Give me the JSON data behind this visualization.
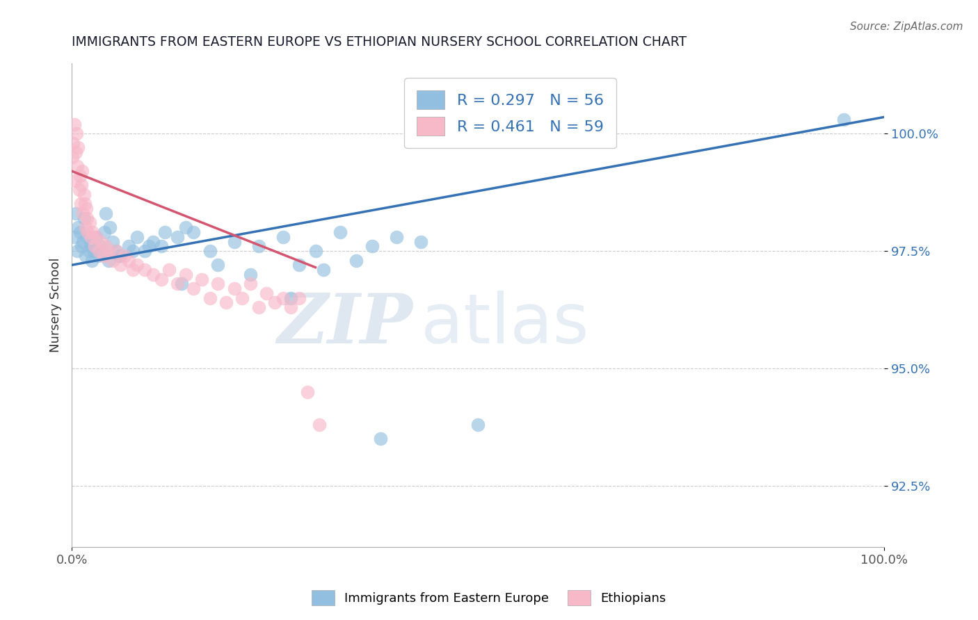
{
  "title": "IMMIGRANTS FROM EASTERN EUROPE VS ETHIOPIAN NURSERY SCHOOL CORRELATION CHART",
  "source": "Source: ZipAtlas.com",
  "xlabel": "",
  "ylabel": "Nursery School",
  "xlim": [
    0.0,
    100.0
  ],
  "ylim": [
    91.2,
    101.5
  ],
  "yticks": [
    92.5,
    95.0,
    97.5,
    100.0
  ],
  "ytick_labels": [
    "92.5%",
    "95.0%",
    "97.5%",
    "100.0%"
  ],
  "blue_label": "Immigrants from Eastern Europe",
  "pink_label": "Ethiopians",
  "blue_R": 0.297,
  "blue_N": 56,
  "pink_R": 0.461,
  "pink_N": 59,
  "blue_color": "#92bfe0",
  "pink_color": "#f7b8c8",
  "blue_line_color": "#3572b5",
  "pink_line_color": "#d45570",
  "watermark_zip": "ZIP",
  "watermark_atlas": "atlas",
  "blue_line_x0": 0.0,
  "blue_line_y0": 97.2,
  "blue_line_x1": 100.0,
  "blue_line_y1": 100.35,
  "pink_line_x0": 0.0,
  "pink_line_y0": 99.2,
  "pink_line_x1": 30.0,
  "pink_line_y1": 97.15,
  "blue_x": [
    0.3,
    0.5,
    0.7,
    0.8,
    1.0,
    1.2,
    1.4,
    1.5,
    1.7,
    1.9,
    2.1,
    2.3,
    2.5,
    2.7,
    3.0,
    3.2,
    3.5,
    3.8,
    4.0,
    4.5,
    5.0,
    5.5,
    6.0,
    7.0,
    8.0,
    9.0,
    10.0,
    11.0,
    13.0,
    15.0,
    17.0,
    20.0,
    23.0,
    26.0,
    30.0,
    33.0,
    37.0,
    40.0,
    43.0,
    13.5,
    18.0,
    22.0,
    27.0,
    31.0,
    35.0,
    4.2,
    4.7,
    5.8,
    7.5,
    9.5,
    11.5,
    14.0,
    28.0,
    38.0,
    50.0,
    95.0
  ],
  "blue_y": [
    97.8,
    98.3,
    97.5,
    98.0,
    97.9,
    97.6,
    97.7,
    98.2,
    97.4,
    97.8,
    97.5,
    97.6,
    97.3,
    97.5,
    97.8,
    97.4,
    97.6,
    97.5,
    97.9,
    97.3,
    97.7,
    97.5,
    97.4,
    97.6,
    97.8,
    97.5,
    97.7,
    97.6,
    97.8,
    97.9,
    97.5,
    97.7,
    97.6,
    97.8,
    97.5,
    97.9,
    97.6,
    97.8,
    97.7,
    96.8,
    97.2,
    97.0,
    96.5,
    97.1,
    97.3,
    98.3,
    98.0,
    97.4,
    97.5,
    97.6,
    97.9,
    98.0,
    97.2,
    93.5,
    93.8,
    100.3
  ],
  "pink_x": [
    0.1,
    0.2,
    0.3,
    0.4,
    0.5,
    0.6,
    0.7,
    0.8,
    0.9,
    1.0,
    1.1,
    1.2,
    1.3,
    1.4,
    1.5,
    1.6,
    1.7,
    1.8,
    1.9,
    2.0,
    2.2,
    2.4,
    2.6,
    2.8,
    3.0,
    3.3,
    3.6,
    3.9,
    4.2,
    4.5,
    5.0,
    5.5,
    6.0,
    6.5,
    7.0,
    7.5,
    8.0,
    9.0,
    10.0,
    11.0,
    12.0,
    13.0,
    14.0,
    15.0,
    16.0,
    17.0,
    18.0,
    19.0,
    20.0,
    21.0,
    22.0,
    23.0,
    24.0,
    25.0,
    26.0,
    27.0,
    28.0,
    29.0,
    30.5
  ],
  "pink_y": [
    99.5,
    99.8,
    100.2,
    99.0,
    99.6,
    100.0,
    99.3,
    99.7,
    98.8,
    99.1,
    98.5,
    98.9,
    99.2,
    98.3,
    98.7,
    98.5,
    98.0,
    98.4,
    98.2,
    97.9,
    98.1,
    97.8,
    97.9,
    97.6,
    97.8,
    97.5,
    97.7,
    97.4,
    97.6,
    97.5,
    97.3,
    97.5,
    97.2,
    97.4,
    97.3,
    97.1,
    97.2,
    97.1,
    97.0,
    96.9,
    97.1,
    96.8,
    97.0,
    96.7,
    96.9,
    96.5,
    96.8,
    96.4,
    96.7,
    96.5,
    96.8,
    96.3,
    96.6,
    96.4,
    96.5,
    96.3,
    96.5,
    94.5,
    93.8
  ]
}
